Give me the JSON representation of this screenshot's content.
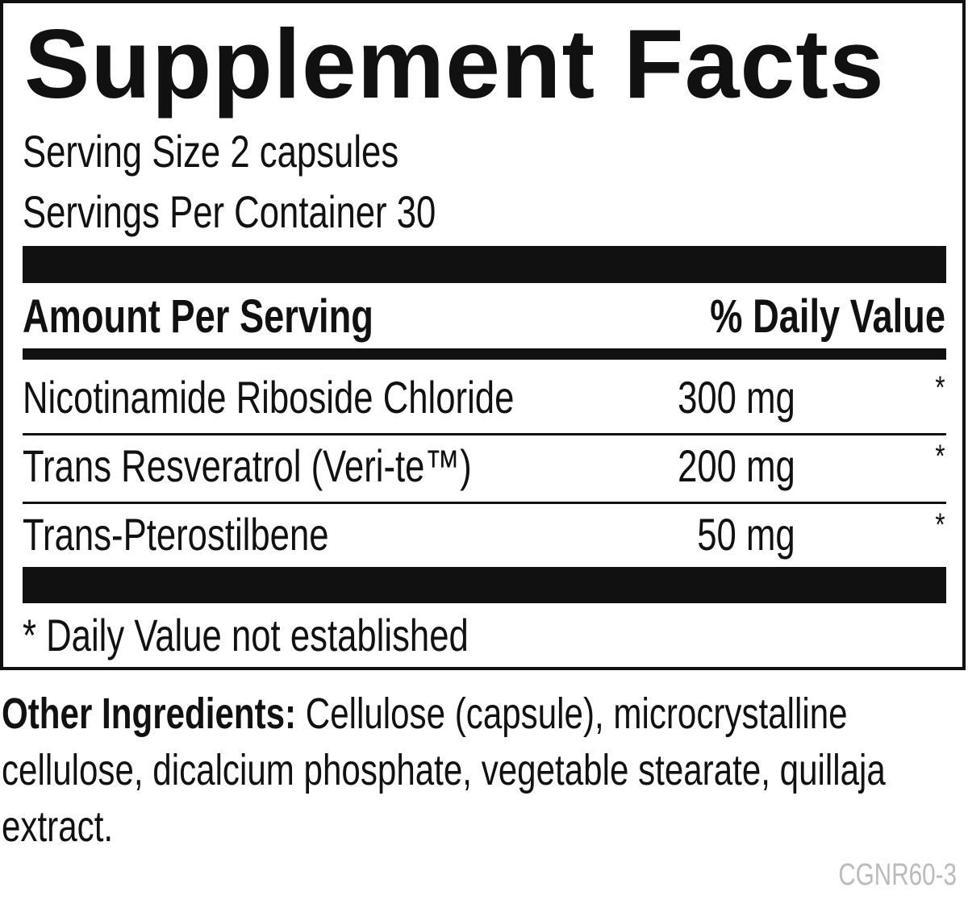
{
  "title": "Supplement Facts",
  "serving_size": "Serving Size 2 capsules",
  "servings_per_container": "Servings Per Container 30",
  "header": {
    "amount": "Amount Per Serving",
    "daily_value": "% Daily Value"
  },
  "rows": [
    {
      "name": "Nicotinamide Riboside Chloride",
      "amount": "300 mg",
      "dv": "*"
    },
    {
      "name": "Trans Resveratrol (Veri-te™)",
      "amount": "200 mg",
      "dv": "*"
    },
    {
      "name": "Trans-Pterostilbene",
      "amount": "50 mg",
      "dv": "*"
    }
  ],
  "footnote": "* Daily Value not established",
  "other_ingredients": {
    "label": "Other Ingredients:",
    "text": "Cellulose (capsule), microcrystalline cellulose, dicalcium phosphate, vegetable stearate, quillaja extract."
  },
  "code": "CGNR60-3"
}
